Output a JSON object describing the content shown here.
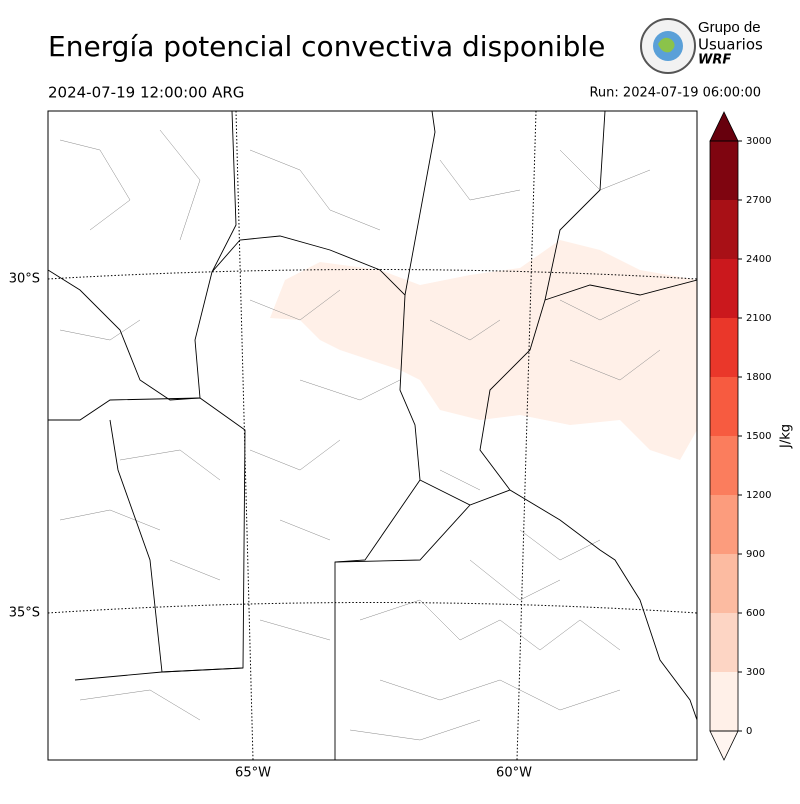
{
  "header": {
    "title": "Energía potencial convectiva disponible",
    "valid_time": "2024-07-19 12:00:00 ARG",
    "run": "Run: 2024-07-19 06:00:00"
  },
  "logo": {
    "line1": "Grupo de",
    "line2": "Usuarios",
    "line3": "WRF"
  },
  "map": {
    "lat_labels": [
      "30°S",
      "35°S"
    ],
    "lon_labels": [
      "65°W",
      "60°W"
    ]
  },
  "colorbar": {
    "label": "J/kg",
    "ticks": [
      0,
      300,
      600,
      900,
      1200,
      1500,
      1800,
      2100,
      2400,
      2700,
      3000
    ],
    "colors": [
      "#fff0e8",
      "#fdd5c4",
      "#fcbba1",
      "#fc9c7d",
      "#fb7d5d",
      "#f75b40",
      "#ea372a",
      "#cb181d",
      "#a81016",
      "#7f0510"
    ],
    "under_color": "#fff5f0",
    "over_color": "#67000d"
  }
}
